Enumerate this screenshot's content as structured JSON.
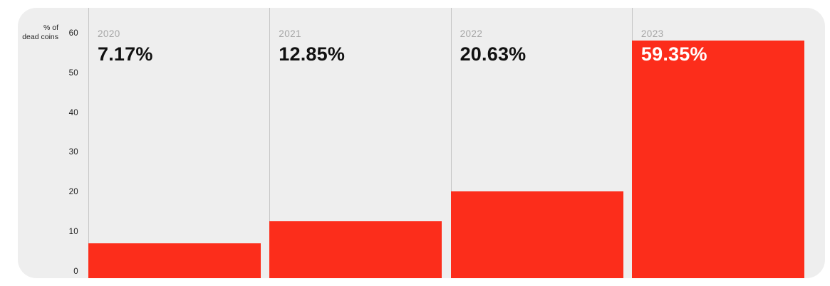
{
  "colors": {
    "page_bg": "#ffffff",
    "card_bg": "#eeeeee",
    "divider": "#c5c5c5",
    "year_label": "#a6a6a6",
    "value_label": "#111111",
    "value_label_on_bar": "#ffffff",
    "tick_label": "#1c1c1c",
    "bar_red": "#fc2d1b"
  },
  "chart_data": {
    "type": "bar",
    "title": "% of dead coins",
    "categories": [
      "2020",
      "2021",
      "2022",
      "2023"
    ],
    "values": [
      7.17,
      12.85,
      20.63,
      59.35
    ],
    "value_labels": [
      "7.17%",
      "12.85%",
      "20.63%",
      "59.35%"
    ],
    "xlabel": "",
    "ylabel": "% of dead coins",
    "ylabel_lines": [
      "% of",
      "dead coins"
    ],
    "ylim": [
      0,
      60
    ],
    "yticks": [
      "60",
      "50",
      "40",
      "30",
      "20",
      "10",
      "0"
    ],
    "grid": false,
    "legend": "none",
    "bar_color": "#fc2d1b"
  }
}
